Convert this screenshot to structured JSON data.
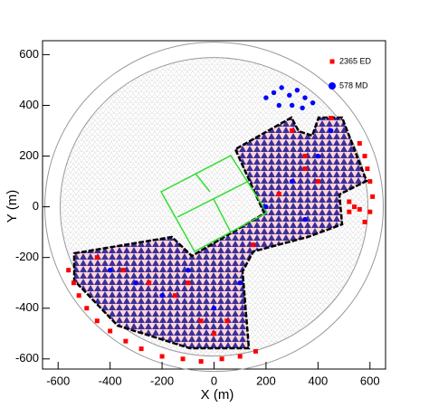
{
  "chart_data": {
    "type": "scatter",
    "x_label": "X (m)",
    "y_label": "Y (m)",
    "xlim": [
      -660,
      660
    ],
    "ylim": [
      -640,
      655
    ],
    "xticks": [
      -600,
      -400,
      -200,
      0,
      200,
      400,
      600
    ],
    "yticks": [
      -600,
      -400,
      -200,
      0,
      200,
      400,
      600
    ],
    "series": [
      {
        "name": "2365 ED",
        "color": "#ff0000",
        "marker": "square",
        "x": [
          -560,
          -540,
          -520,
          -490,
          -450,
          -400,
          -340,
          -280,
          -200,
          -120,
          -50,
          30,
          100,
          160,
          560,
          580,
          590,
          600,
          610,
          600,
          580,
          520,
          540,
          560,
          520,
          -450,
          -350,
          -250,
          -150,
          -50,
          50,
          150,
          250,
          350,
          450,
          300,
          350,
          400,
          -100,
          0
        ],
        "y": [
          -250,
          -300,
          -350,
          -400,
          -450,
          -490,
          -530,
          -560,
          -590,
          -600,
          -610,
          -600,
          -590,
          -570,
          250,
          200,
          150,
          100,
          40,
          -20,
          -60,
          20,
          0,
          -10,
          -20,
          -200,
          -250,
          -300,
          -350,
          -450,
          -450,
          -150,
          50,
          150,
          350,
          300,
          200,
          100,
          -300,
          -500
        ]
      },
      {
        "name": "578 MD",
        "color": "#0000ff",
        "marker": "circle",
        "x": [
          200,
          230,
          260,
          290,
          320,
          350,
          250,
          300,
          340,
          380,
          -400,
          -300,
          -200,
          0,
          100,
          -100,
          200,
          300,
          400,
          450,
          350
        ],
        "y": [
          430,
          450,
          470,
          440,
          460,
          430,
          400,
          400,
          390,
          410,
          -250,
          -300,
          -350,
          -400,
          -300,
          -250,
          0,
          100,
          200,
          300,
          -50
        ]
      }
    ]
  }
}
